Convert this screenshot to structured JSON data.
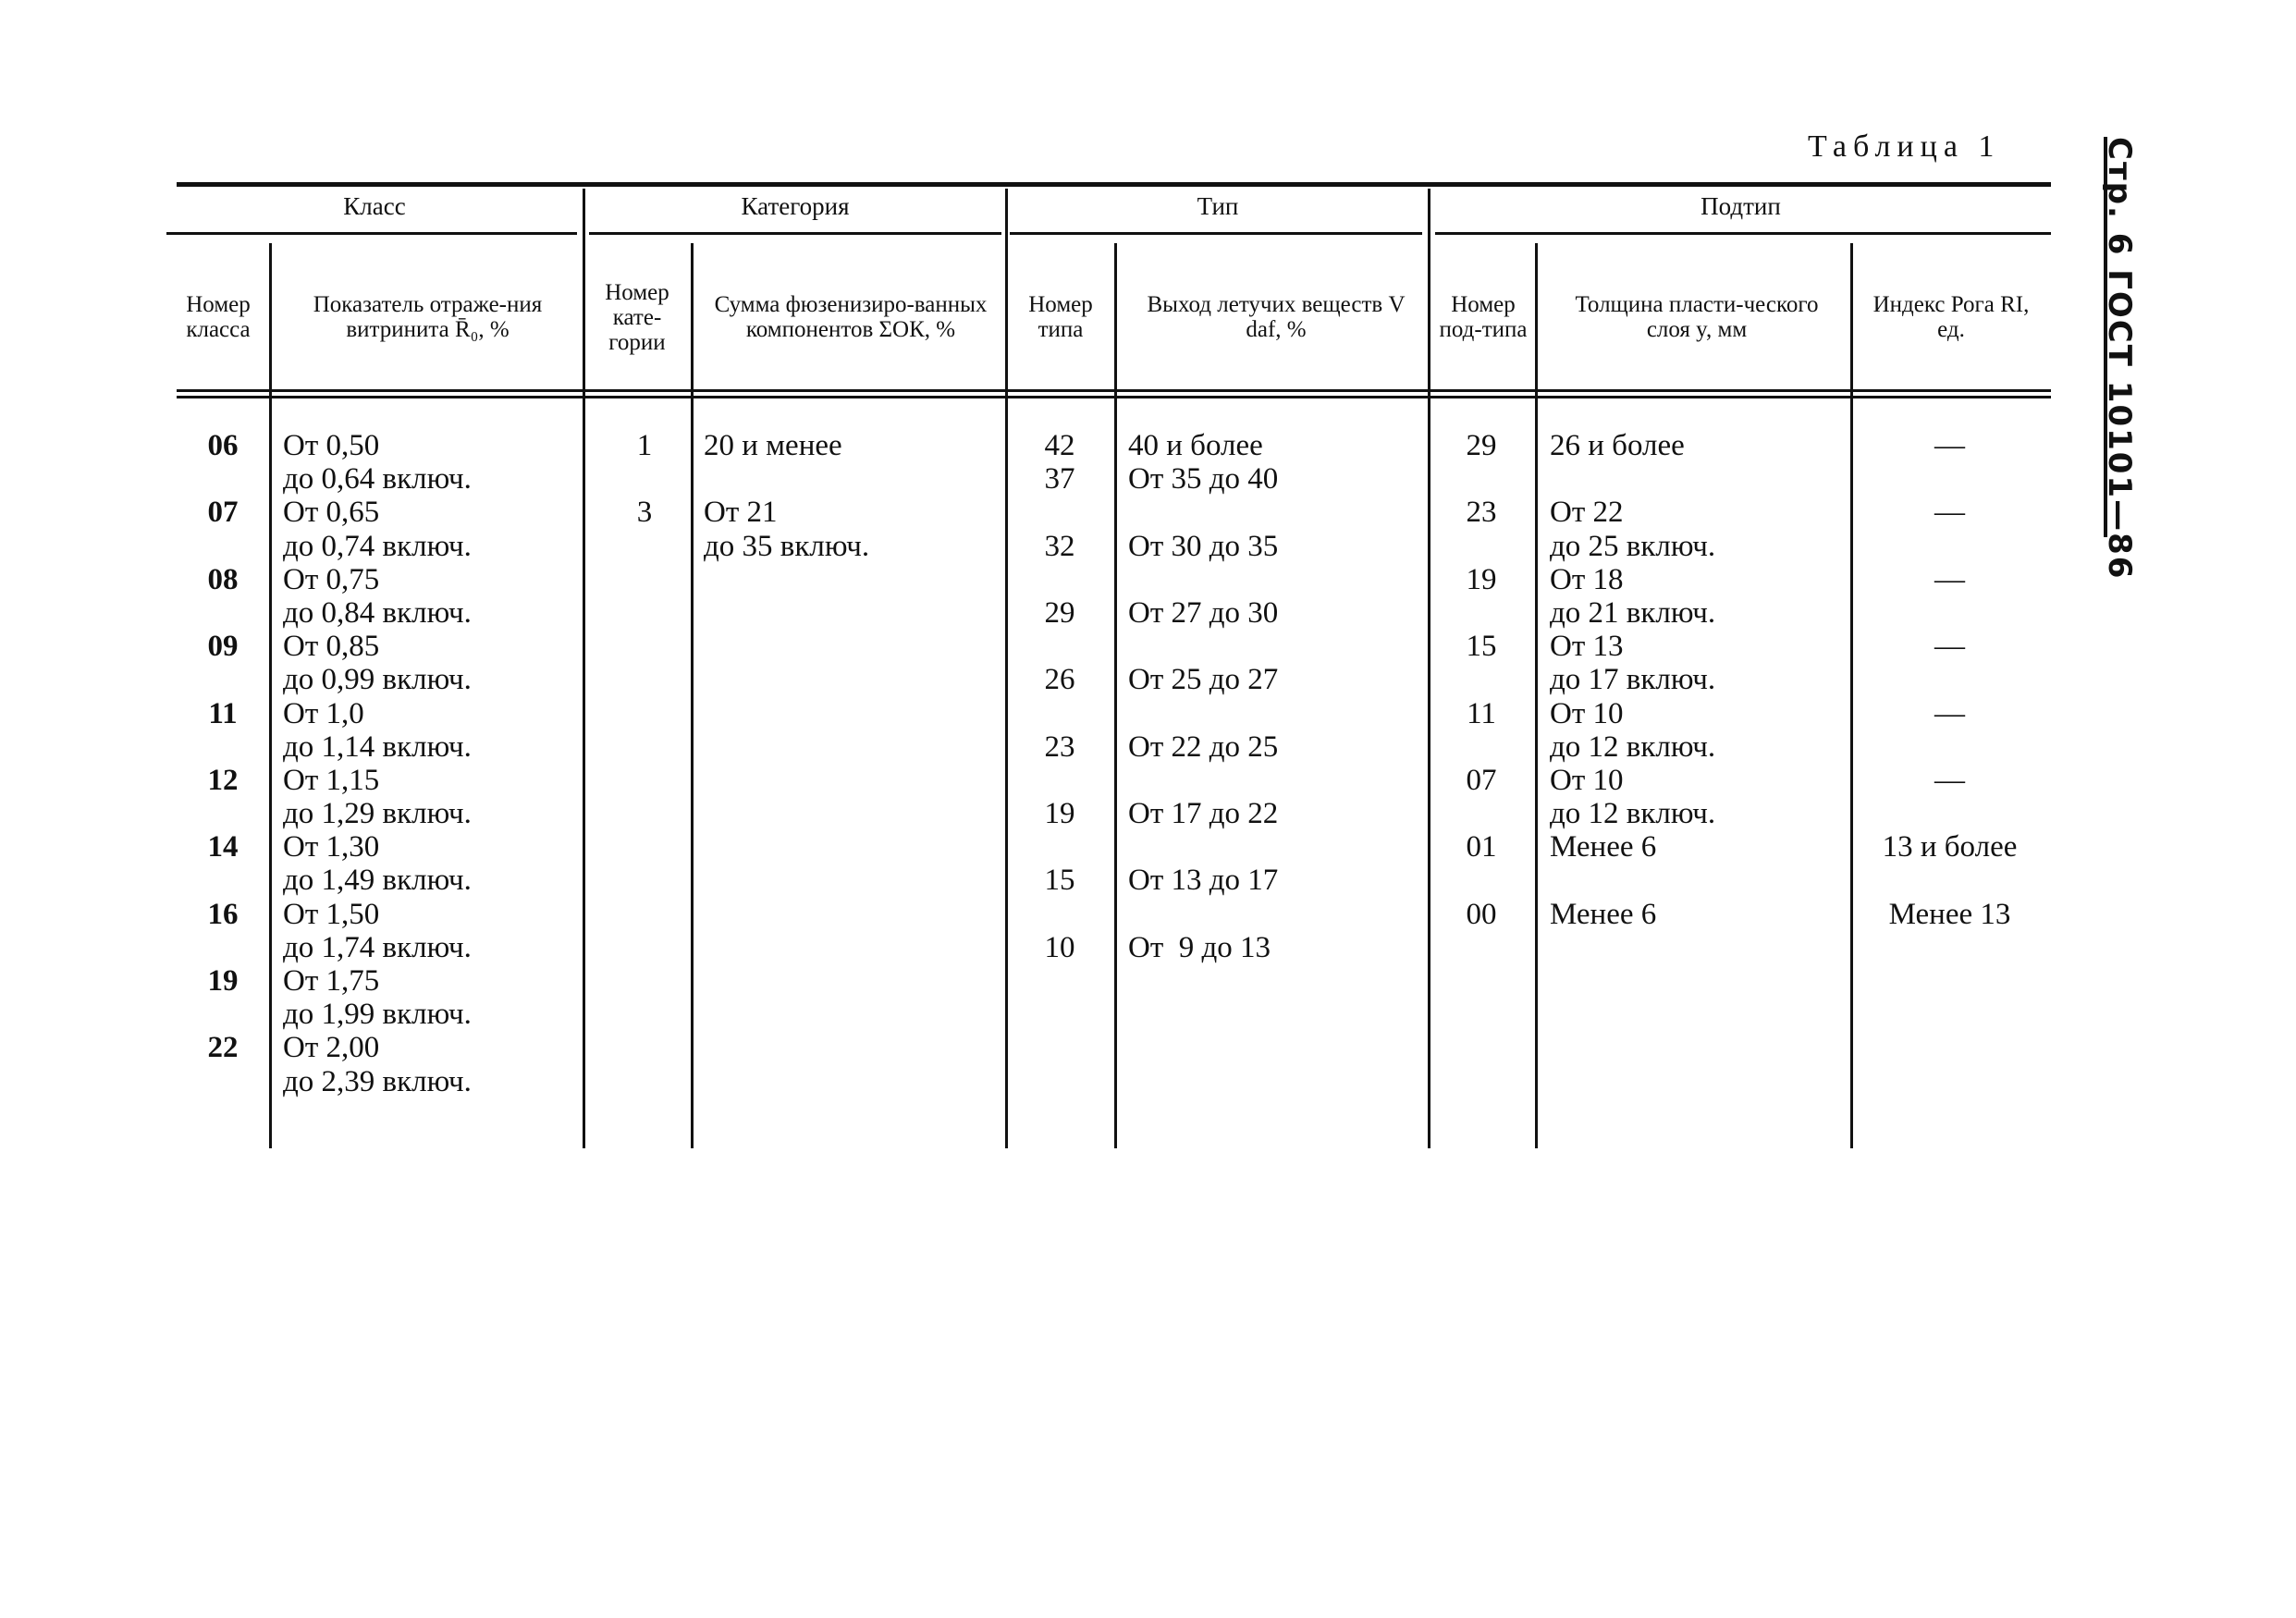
{
  "page_header": {
    "title": "Таблица 1",
    "side_label": "Стр. 6 ГОСТ 10101—86"
  },
  "groups": {
    "class": "Класс",
    "category": "Категория",
    "type": "Тип",
    "subtype": "Подтип"
  },
  "columns": {
    "class_num": "Номер класса",
    "reflectance": "Показатель отраже-ния витринита R̄₀, %",
    "category_num": "Номер кате-гории",
    "fusinite": "Сумма фюзенизиро-ванных компонентов ΣОК, %",
    "type_num": "Номер типа",
    "volatile": "Выход летучих веществ V daf, %",
    "subtype_num": "Номер под-типа",
    "plastic_layer": "Толщина пласти-ческого слоя y, мм",
    "roga_index": "Индекс Рога RI, ед."
  },
  "rows": {
    "class_num": [
      "06",
      "",
      "07",
      "",
      "08",
      "",
      "09",
      "",
      "11",
      "",
      "12",
      "",
      "14",
      "",
      "16",
      "",
      "19",
      "",
      "22",
      ""
    ],
    "reflectance": [
      "От 0,50",
      "до 0,64 включ.",
      "От 0,65",
      "до 0,74 включ.",
      "От 0,75",
      "до 0,84 включ.",
      "От 0,85",
      "до 0,99 включ.",
      "От 1,0",
      "до 1,14 включ.",
      "От 1,15",
      "до 1,29 включ.",
      "От 1,30",
      "до 1,49 включ.",
      "От 1,50",
      "до 1,74 включ.",
      "От 1,75",
      "до 1,99 включ.",
      "От 2,00",
      "до 2,39 включ."
    ],
    "category_num": [
      "1",
      "",
      "3"
    ],
    "fusinite": [
      "20 и менее",
      "",
      "От 21",
      "до 35 включ."
    ],
    "type_num": [
      "42",
      "37",
      "",
      "32",
      "",
      "29",
      "",
      "26",
      "",
      "23",
      "",
      "19",
      "",
      "15",
      "",
      "10"
    ],
    "volatile": [
      "40 и более",
      "От 35 до 40",
      "",
      "От 30 до 35",
      "",
      "От 27 до 30",
      "",
      "От 25 до 27",
      "",
      "От 22 до 25",
      "",
      "От 17 до 22",
      "",
      "От 13 до 17",
      "",
      "От  9 до 13"
    ],
    "subtype_num": [
      "29",
      "",
      "23",
      "",
      "19",
      "",
      "15",
      "",
      "11",
      "",
      "07",
      "",
      "01",
      "",
      "00"
    ],
    "plastic_layer": [
      "26 и более",
      "",
      "От 22",
      "до 25 включ.",
      "От 18",
      "до 21 включ.",
      "От 13",
      "до 17 включ.",
      "От 10",
      "до 12 включ.",
      "От 10",
      "до 12 включ.",
      "Менее 6",
      "",
      "Менее 6"
    ],
    "roga_index": [
      "—",
      "",
      "—",
      "",
      "—",
      "",
      "—",
      "",
      "—",
      "",
      "—",
      "",
      "13 и более",
      "",
      "Менее 13"
    ]
  }
}
